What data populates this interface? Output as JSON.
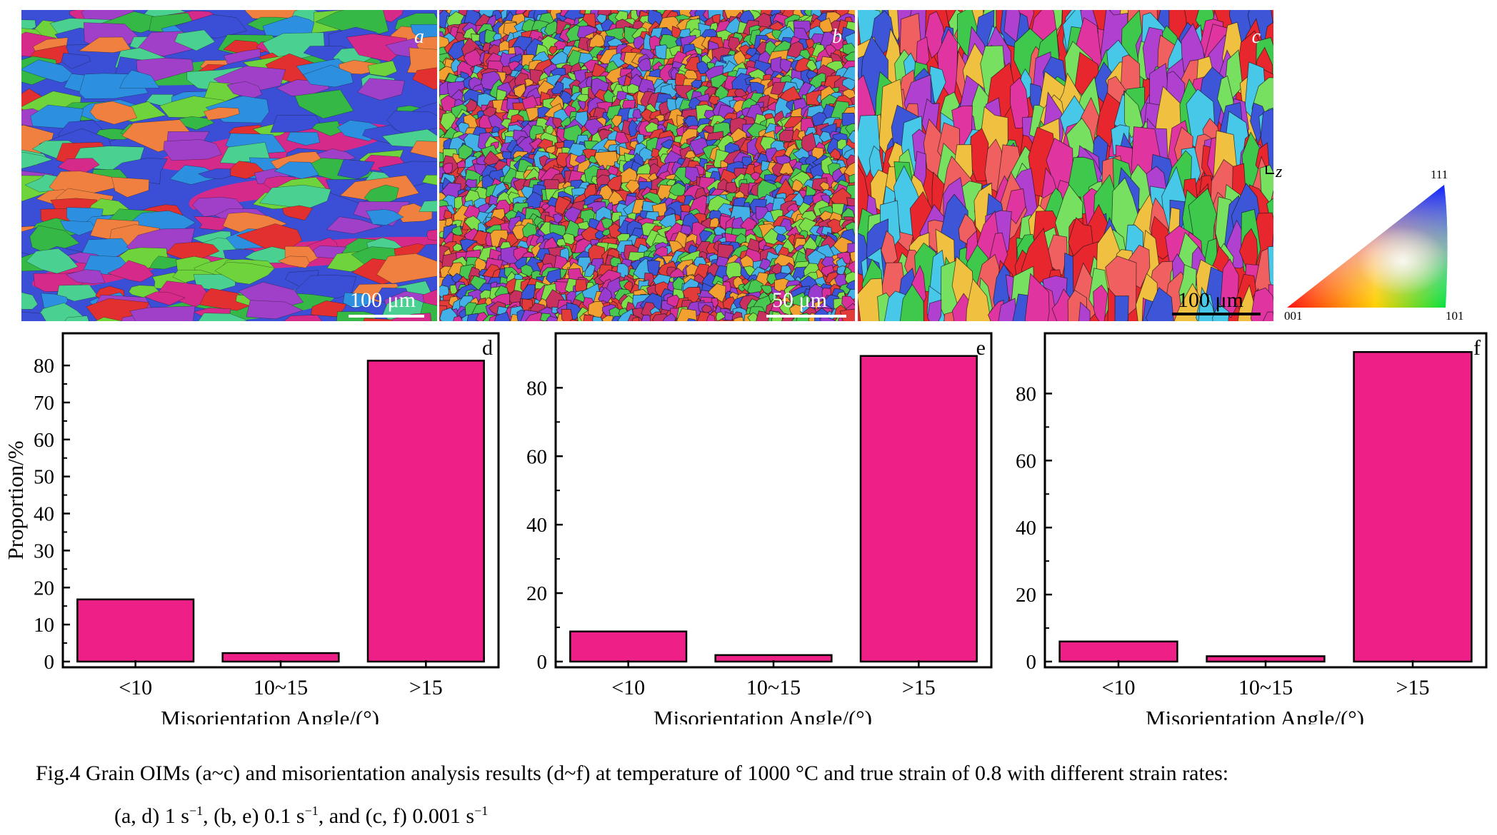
{
  "oim_panels": [
    {
      "letter": "a",
      "scale_label": "100 μm",
      "colors": [
        "#3a4fd6",
        "#35b845",
        "#d62a8a",
        "#e23030",
        "#6fd33c",
        "#a040c8",
        "#2d8fe0",
        "#f08040",
        "#4ad090"
      ]
    },
    {
      "letter": "b",
      "scale_label": "50 μm",
      "colors": [
        "#e33a3a",
        "#48c850",
        "#3a55d8",
        "#d8309a",
        "#9a3bd0",
        "#f2a030",
        "#43b0e8",
        "#7de04a",
        "#c83060"
      ]
    },
    {
      "letter": "c",
      "scale_label": "100 μm",
      "colors": [
        "#e8262e",
        "#3d56d8",
        "#3ec84c",
        "#e035a0",
        "#b040d0",
        "#48c8e8",
        "#f0c040",
        "#78e060",
        "#f06060"
      ]
    }
  ],
  "axis_marker": "z",
  "ipf_legend": {
    "top": "111",
    "left": "001",
    "right": "101"
  },
  "chart_data": [
    {
      "type": "bar",
      "panel_label": "d",
      "categories": [
        "<10",
        "10~15",
        ">15"
      ],
      "values": [
        16.8,
        2.3,
        81.3
      ],
      "ylabel": "Proportion/%",
      "xlabel": "Misorientation Angle/(°)",
      "ylim": [
        0,
        86
      ],
      "yticks": [
        0,
        10,
        20,
        30,
        40,
        50,
        60,
        70,
        80
      ],
      "bar_color": "#ee1f86"
    },
    {
      "type": "bar",
      "panel_label": "e",
      "categories": [
        "<10",
        "10~15",
        ">15"
      ],
      "values": [
        8.8,
        1.9,
        89.3
      ],
      "ylabel": "",
      "xlabel": "Misorientation Angle/(°)",
      "ylim": [
        0,
        93
      ],
      "yticks": [
        0,
        20,
        40,
        60,
        80
      ],
      "bar_color": "#ee1f86"
    },
    {
      "type": "bar",
      "panel_label": "f",
      "categories": [
        "<10",
        "10~15",
        ">15"
      ],
      "values": [
        6.0,
        1.6,
        92.4
      ],
      "ylabel": "",
      "xlabel": "Misorientation Angle/(°)",
      "ylim": [
        0,
        95
      ],
      "yticks": [
        0,
        20,
        40,
        60,
        80
      ],
      "bar_color": "#ee1f86"
    }
  ],
  "caption": {
    "line1": "Fig.4    Grain OIMs (a~c) and misorientation analysis results (d~f) at temperature of 1000 °C and true strain of 0.8 with different strain rates:",
    "line2_a": "(a, d) 1 s",
    "line2_b": ", (b, e) 0.1 s",
    "line2_c": ", and (c, f) 0.001 s",
    "sup": "−1"
  }
}
